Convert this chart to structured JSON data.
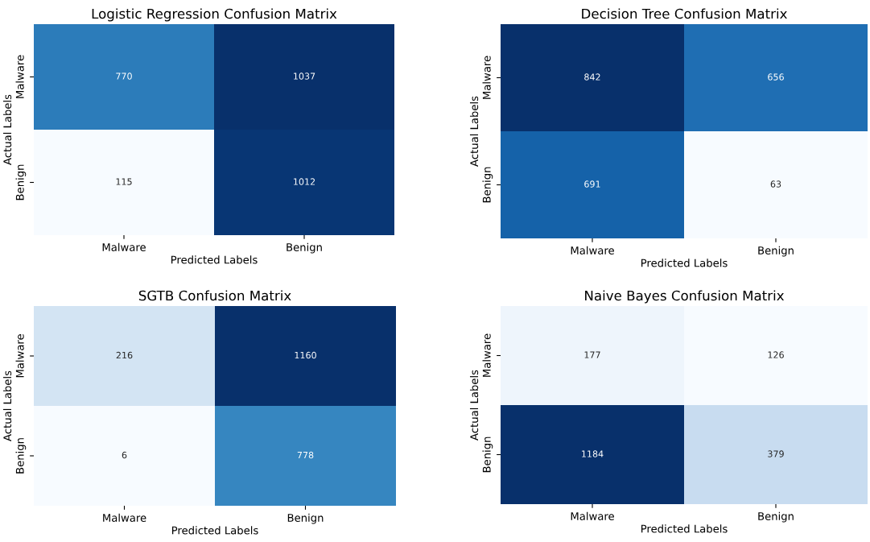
{
  "chart_data": [
    {
      "type": "heatmap",
      "title": "Logistic Regression Confusion Matrix",
      "xlabel": "Predicted Labels",
      "ylabel": "Actual Labels",
      "categories": [
        "Malware",
        "Benign"
      ],
      "y_categories": [
        "Malware",
        "Benign"
      ],
      "cells": [
        [
          770,
          1037
        ],
        [
          115,
          1012
        ]
      ],
      "data_labels": true
    },
    {
      "type": "heatmap",
      "title": "Decision Tree Confusion Matrix",
      "xlabel": "Predicted Labels",
      "ylabel": "Actual Labels",
      "categories": [
        "Malware",
        "Benign"
      ],
      "y_categories": [
        "Malware",
        "Benign"
      ],
      "cells": [
        [
          842,
          656
        ],
        [
          691,
          63
        ]
      ],
      "data_labels": true
    },
    {
      "type": "heatmap",
      "title": "SGTB Confusion Matrix",
      "xlabel": "Predicted Labels",
      "ylabel": "Actual Labels",
      "categories": [
        "Malware",
        "Benign"
      ],
      "y_categories": [
        "Malware",
        "Benign"
      ],
      "cells": [
        [
          216,
          1160
        ],
        [
          6,
          778
        ]
      ],
      "data_labels": true
    },
    {
      "type": "heatmap",
      "title": "Naive Bayes Confusion Matrix",
      "xlabel": "Predicted Labels",
      "ylabel": "Actual Labels",
      "categories": [
        "Malware",
        "Benign"
      ],
      "y_categories": [
        "Malware",
        "Benign"
      ],
      "cells": [
        [
          177,
          126
        ],
        [
          1184,
          379
        ]
      ],
      "data_labels": true
    }
  ]
}
